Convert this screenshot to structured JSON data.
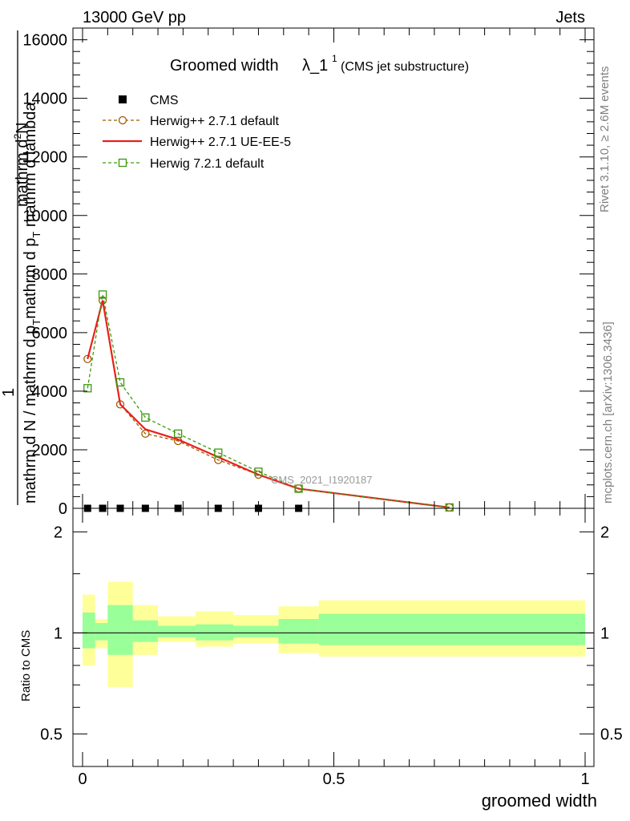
{
  "header": {
    "left": "13000 GeV pp",
    "right": "Jets"
  },
  "side": {
    "rivet": "Rivet 3.1.10, ≥ 2.6M events",
    "mcplots": "mcplots.cern.ch [arXiv:1306.3436]"
  },
  "chart_data": [
    {
      "type": "line",
      "title_main": "Groomed width",
      "title_lambda": "λ_1",
      "title_sup": "1",
      "title_sub": "(CMS jet substructure)",
      "ylabel_numerator": "mathrm d",
      "ylabel_numerator_sup": "2",
      "ylabel_numerator_tail": "N",
      "ylabel_one": "1",
      "ylabel_den_left": "mathrm d N / mathrm d p",
      "ylabel_den_left_sub": "T",
      "ylabel_den_right": "mathrm d p",
      "ylabel_den_right_sub": "T",
      "ylabel_den_tail": " mathrm d lambda",
      "xlim": [
        0,
        1
      ],
      "ylim": [
        0,
        16400
      ],
      "yticks": [
        0,
        2000,
        4000,
        6000,
        8000,
        10000,
        12000,
        14000,
        16000
      ],
      "ytick_labels": [
        "0",
        "2000",
        "4000",
        "6000",
        "8000",
        "10000",
        "12000",
        "14000",
        "16000"
      ],
      "watermark": "CMS_2021_I1920187",
      "legend_position": "top-left",
      "series": [
        {
          "name": "CMS",
          "marker": "filled-square",
          "color": "#000000",
          "x": [
            0.01,
            0.04,
            0.075,
            0.125,
            0.19,
            0.27,
            0.35,
            0.43
          ],
          "values": [
            0,
            0,
            0,
            0,
            0,
            0,
            0,
            0
          ]
        },
        {
          "name": "Herwig++ 2.7.1 default",
          "marker": "open-circle",
          "color": "#a05a00",
          "dash": true,
          "x": [
            0.01,
            0.04,
            0.075,
            0.125,
            0.19,
            0.27,
            0.35,
            0.43,
            0.73
          ],
          "values": [
            5100,
            7100,
            3550,
            2550,
            2300,
            1650,
            1150,
            680,
            30
          ]
        },
        {
          "name": "Herwig++ 2.7.1 UE-EE-5",
          "marker": "none",
          "color": "#e8211a",
          "dash": false,
          "x": [
            0.01,
            0.04,
            0.075,
            0.125,
            0.19,
            0.27,
            0.35,
            0.43,
            0.73
          ],
          "values": [
            5100,
            7100,
            3550,
            2700,
            2350,
            1750,
            1150,
            670,
            30
          ]
        },
        {
          "name": "Herwig 7.2.1 default",
          "marker": "open-square",
          "color": "#3a9a10",
          "dash": true,
          "x": [
            0.01,
            0.04,
            0.075,
            0.125,
            0.19,
            0.27,
            0.35,
            0.43,
            0.73
          ],
          "values": [
            4100,
            7300,
            4300,
            3100,
            2550,
            1900,
            1250,
            670,
            30
          ]
        }
      ]
    },
    {
      "type": "area",
      "ylabel": "Ratio to CMS",
      "xlabel": "groomed width",
      "xlim": [
        0,
        1
      ],
      "ylim": [
        0.4,
        2.35
      ],
      "log_y": true,
      "yticks": [
        0.5,
        1,
        2
      ],
      "ytick_labels": [
        "0.5",
        "1",
        "2"
      ],
      "xticks": [
        0,
        0.5,
        1
      ],
      "xtick_labels": [
        "0",
        "0.5",
        "1"
      ],
      "bins": [
        {
          "x0": 0.0,
          "x1": 0.025,
          "outer_lo": 0.8,
          "outer_hi": 1.3,
          "inner_lo": 0.9,
          "inner_hi": 1.15
        },
        {
          "x0": 0.025,
          "x1": 0.05,
          "outer_lo": 0.9,
          "outer_hi": 1.1,
          "inner_lo": 0.95,
          "inner_hi": 1.07
        },
        {
          "x0": 0.05,
          "x1": 0.1,
          "outer_lo": 0.69,
          "outer_hi": 1.42,
          "inner_lo": 0.86,
          "inner_hi": 1.21
        },
        {
          "x0": 0.1,
          "x1": 0.15,
          "outer_lo": 0.86,
          "outer_hi": 1.21,
          "inner_lo": 0.94,
          "inner_hi": 1.09
        },
        {
          "x0": 0.15,
          "x1": 0.225,
          "outer_lo": 0.94,
          "outer_hi": 1.12,
          "inner_lo": 0.97,
          "inner_hi": 1.05
        },
        {
          "x0": 0.225,
          "x1": 0.3,
          "outer_lo": 0.91,
          "outer_hi": 1.16,
          "inner_lo": 0.95,
          "inner_hi": 1.06
        },
        {
          "x0": 0.3,
          "x1": 0.39,
          "outer_lo": 0.93,
          "outer_hi": 1.13,
          "inner_lo": 0.97,
          "inner_hi": 1.05
        },
        {
          "x0": 0.39,
          "x1": 0.47,
          "outer_lo": 0.87,
          "outer_hi": 1.2,
          "inner_lo": 0.93,
          "inner_hi": 1.1
        },
        {
          "x0": 0.47,
          "x1": 1.0,
          "outer_lo": 0.85,
          "outer_hi": 1.25,
          "inner_lo": 0.92,
          "inner_hi": 1.14
        }
      ],
      "outer_color": "#ffff99",
      "inner_color": "#99ff99"
    }
  ]
}
